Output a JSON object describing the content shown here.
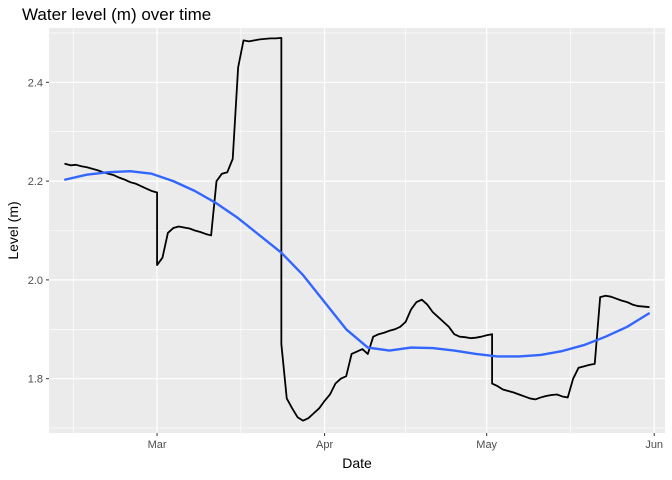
{
  "chart_data": {
    "type": "line",
    "title": "Water level (m) over time",
    "xlabel": "Date",
    "ylabel": "Level (m)",
    "grid": true,
    "legend": "none",
    "x_ticks": [
      {
        "date": "2021-03-01",
        "label": "Mar"
      },
      {
        "date": "2021-04-01",
        "label": "Apr"
      },
      {
        "date": "2021-05-01",
        "label": "May"
      },
      {
        "date": "2021-06-01",
        "label": "Jun"
      }
    ],
    "y_ticks": [
      1.8,
      2.0,
      2.2,
      2.4
    ],
    "xlim": [
      "2021-02-09",
      "2021-06-03"
    ],
    "ylim": [
      1.69,
      2.51
    ],
    "series": [
      {
        "kind": "observed",
        "color": "#000000",
        "points": [
          [
            "2021-02-12",
            2.235
          ],
          [
            "2021-02-13",
            2.232
          ],
          [
            "2021-02-14",
            2.233
          ],
          [
            "2021-02-15",
            2.23
          ],
          [
            "2021-02-16",
            2.228
          ],
          [
            "2021-02-17",
            2.225
          ],
          [
            "2021-02-18",
            2.222
          ],
          [
            "2021-02-19",
            2.218
          ],
          [
            "2021-02-20",
            2.215
          ],
          [
            "2021-02-21",
            2.212
          ],
          [
            "2021-02-22",
            2.207
          ],
          [
            "2021-02-23",
            2.203
          ],
          [
            "2021-02-24",
            2.198
          ],
          [
            "2021-02-25",
            2.195
          ],
          [
            "2021-02-26",
            2.19
          ],
          [
            "2021-02-27",
            2.185
          ],
          [
            "2021-02-28",
            2.18
          ],
          [
            "2021-03-01",
            2.177
          ],
          [
            "2021-03-01",
            2.03
          ],
          [
            "2021-03-02",
            2.045
          ],
          [
            "2021-03-03",
            2.095
          ],
          [
            "2021-03-04",
            2.105
          ],
          [
            "2021-03-05",
            2.108
          ],
          [
            "2021-03-06",
            2.106
          ],
          [
            "2021-03-07",
            2.104
          ],
          [
            "2021-03-08",
            2.1
          ],
          [
            "2021-03-09",
            2.097
          ],
          [
            "2021-03-10",
            2.093
          ],
          [
            "2021-03-11",
            2.09
          ],
          [
            "2021-03-12",
            2.2
          ],
          [
            "2021-03-13",
            2.215
          ],
          [
            "2021-03-14",
            2.218
          ],
          [
            "2021-03-15",
            2.245
          ],
          [
            "2021-03-16",
            2.43
          ],
          [
            "2021-03-17",
            2.485
          ],
          [
            "2021-03-18",
            2.483
          ],
          [
            "2021-03-19",
            2.485
          ],
          [
            "2021-03-20",
            2.487
          ],
          [
            "2021-03-21",
            2.488
          ],
          [
            "2021-03-22",
            2.489
          ],
          [
            "2021-03-23",
            2.489
          ],
          [
            "2021-03-24",
            2.49
          ],
          [
            "2021-03-24",
            1.87
          ],
          [
            "2021-03-25",
            1.76
          ],
          [
            "2021-03-26",
            1.74
          ],
          [
            "2021-03-27",
            1.722
          ],
          [
            "2021-03-28",
            1.715
          ],
          [
            "2021-03-29",
            1.72
          ],
          [
            "2021-03-30",
            1.73
          ],
          [
            "2021-03-31",
            1.74
          ],
          [
            "2021-04-01",
            1.755
          ],
          [
            "2021-04-02",
            1.768
          ],
          [
            "2021-04-03",
            1.79
          ],
          [
            "2021-04-04",
            1.8
          ],
          [
            "2021-04-05",
            1.805
          ],
          [
            "2021-04-06",
            1.85
          ],
          [
            "2021-04-07",
            1.855
          ],
          [
            "2021-04-08",
            1.86
          ],
          [
            "2021-04-09",
            1.85
          ],
          [
            "2021-04-10",
            1.885
          ],
          [
            "2021-04-11",
            1.89
          ],
          [
            "2021-04-12",
            1.893
          ],
          [
            "2021-04-13",
            1.897
          ],
          [
            "2021-04-14",
            1.9
          ],
          [
            "2021-04-15",
            1.905
          ],
          [
            "2021-04-16",
            1.915
          ],
          [
            "2021-04-17",
            1.94
          ],
          [
            "2021-04-18",
            1.955
          ],
          [
            "2021-04-19",
            1.96
          ],
          [
            "2021-04-20",
            1.95
          ],
          [
            "2021-04-21",
            1.935
          ],
          [
            "2021-04-22",
            1.925
          ],
          [
            "2021-04-23",
            1.915
          ],
          [
            "2021-04-24",
            1.905
          ],
          [
            "2021-04-25",
            1.89
          ],
          [
            "2021-04-26",
            1.885
          ],
          [
            "2021-04-27",
            1.884
          ],
          [
            "2021-04-28",
            1.882
          ],
          [
            "2021-04-29",
            1.883
          ],
          [
            "2021-04-30",
            1.885
          ],
          [
            "2021-05-01",
            1.888
          ],
          [
            "2021-05-02",
            1.89
          ],
          [
            "2021-05-02",
            1.79
          ],
          [
            "2021-05-03",
            1.785
          ],
          [
            "2021-05-04",
            1.778
          ],
          [
            "2021-05-05",
            1.775
          ],
          [
            "2021-05-06",
            1.772
          ],
          [
            "2021-05-07",
            1.768
          ],
          [
            "2021-05-08",
            1.764
          ],
          [
            "2021-05-09",
            1.76
          ],
          [
            "2021-05-10",
            1.758
          ],
          [
            "2021-05-11",
            1.762
          ],
          [
            "2021-05-12",
            1.765
          ],
          [
            "2021-05-13",
            1.767
          ],
          [
            "2021-05-14",
            1.768
          ],
          [
            "2021-05-15",
            1.764
          ],
          [
            "2021-05-16",
            1.762
          ],
          [
            "2021-05-17",
            1.8
          ],
          [
            "2021-05-18",
            1.822
          ],
          [
            "2021-05-19",
            1.825
          ],
          [
            "2021-05-20",
            1.828
          ],
          [
            "2021-05-21",
            1.83
          ],
          [
            "2021-05-22",
            1.965
          ],
          [
            "2021-05-23",
            1.968
          ],
          [
            "2021-05-24",
            1.966
          ],
          [
            "2021-05-25",
            1.962
          ],
          [
            "2021-05-26",
            1.958
          ],
          [
            "2021-05-27",
            1.955
          ],
          [
            "2021-05-28",
            1.95
          ],
          [
            "2021-05-29",
            1.947
          ],
          [
            "2021-05-30",
            1.946
          ],
          [
            "2021-05-31",
            1.945
          ]
        ]
      },
      {
        "kind": "smooth",
        "color": "#3366ff",
        "points": [
          [
            "2021-02-12",
            2.203
          ],
          [
            "2021-02-16",
            2.213
          ],
          [
            "2021-02-20",
            2.218
          ],
          [
            "2021-02-24",
            2.22
          ],
          [
            "2021-02-28",
            2.215
          ],
          [
            "2021-03-04",
            2.2
          ],
          [
            "2021-03-08",
            2.18
          ],
          [
            "2021-03-12",
            2.155
          ],
          [
            "2021-03-16",
            2.125
          ],
          [
            "2021-03-20",
            2.09
          ],
          [
            "2021-03-24",
            2.055
          ],
          [
            "2021-03-28",
            2.01
          ],
          [
            "2021-04-01",
            1.955
          ],
          [
            "2021-04-05",
            1.9
          ],
          [
            "2021-04-09",
            1.863
          ],
          [
            "2021-04-13",
            1.857
          ],
          [
            "2021-04-17",
            1.863
          ],
          [
            "2021-04-21",
            1.862
          ],
          [
            "2021-04-25",
            1.857
          ],
          [
            "2021-04-29",
            1.85
          ],
          [
            "2021-05-03",
            1.845
          ],
          [
            "2021-05-07",
            1.845
          ],
          [
            "2021-05-11",
            1.848
          ],
          [
            "2021-05-15",
            1.856
          ],
          [
            "2021-05-19",
            1.868
          ],
          [
            "2021-05-23",
            1.885
          ],
          [
            "2021-05-27",
            1.905
          ],
          [
            "2021-05-31",
            1.932
          ]
        ]
      }
    ]
  }
}
